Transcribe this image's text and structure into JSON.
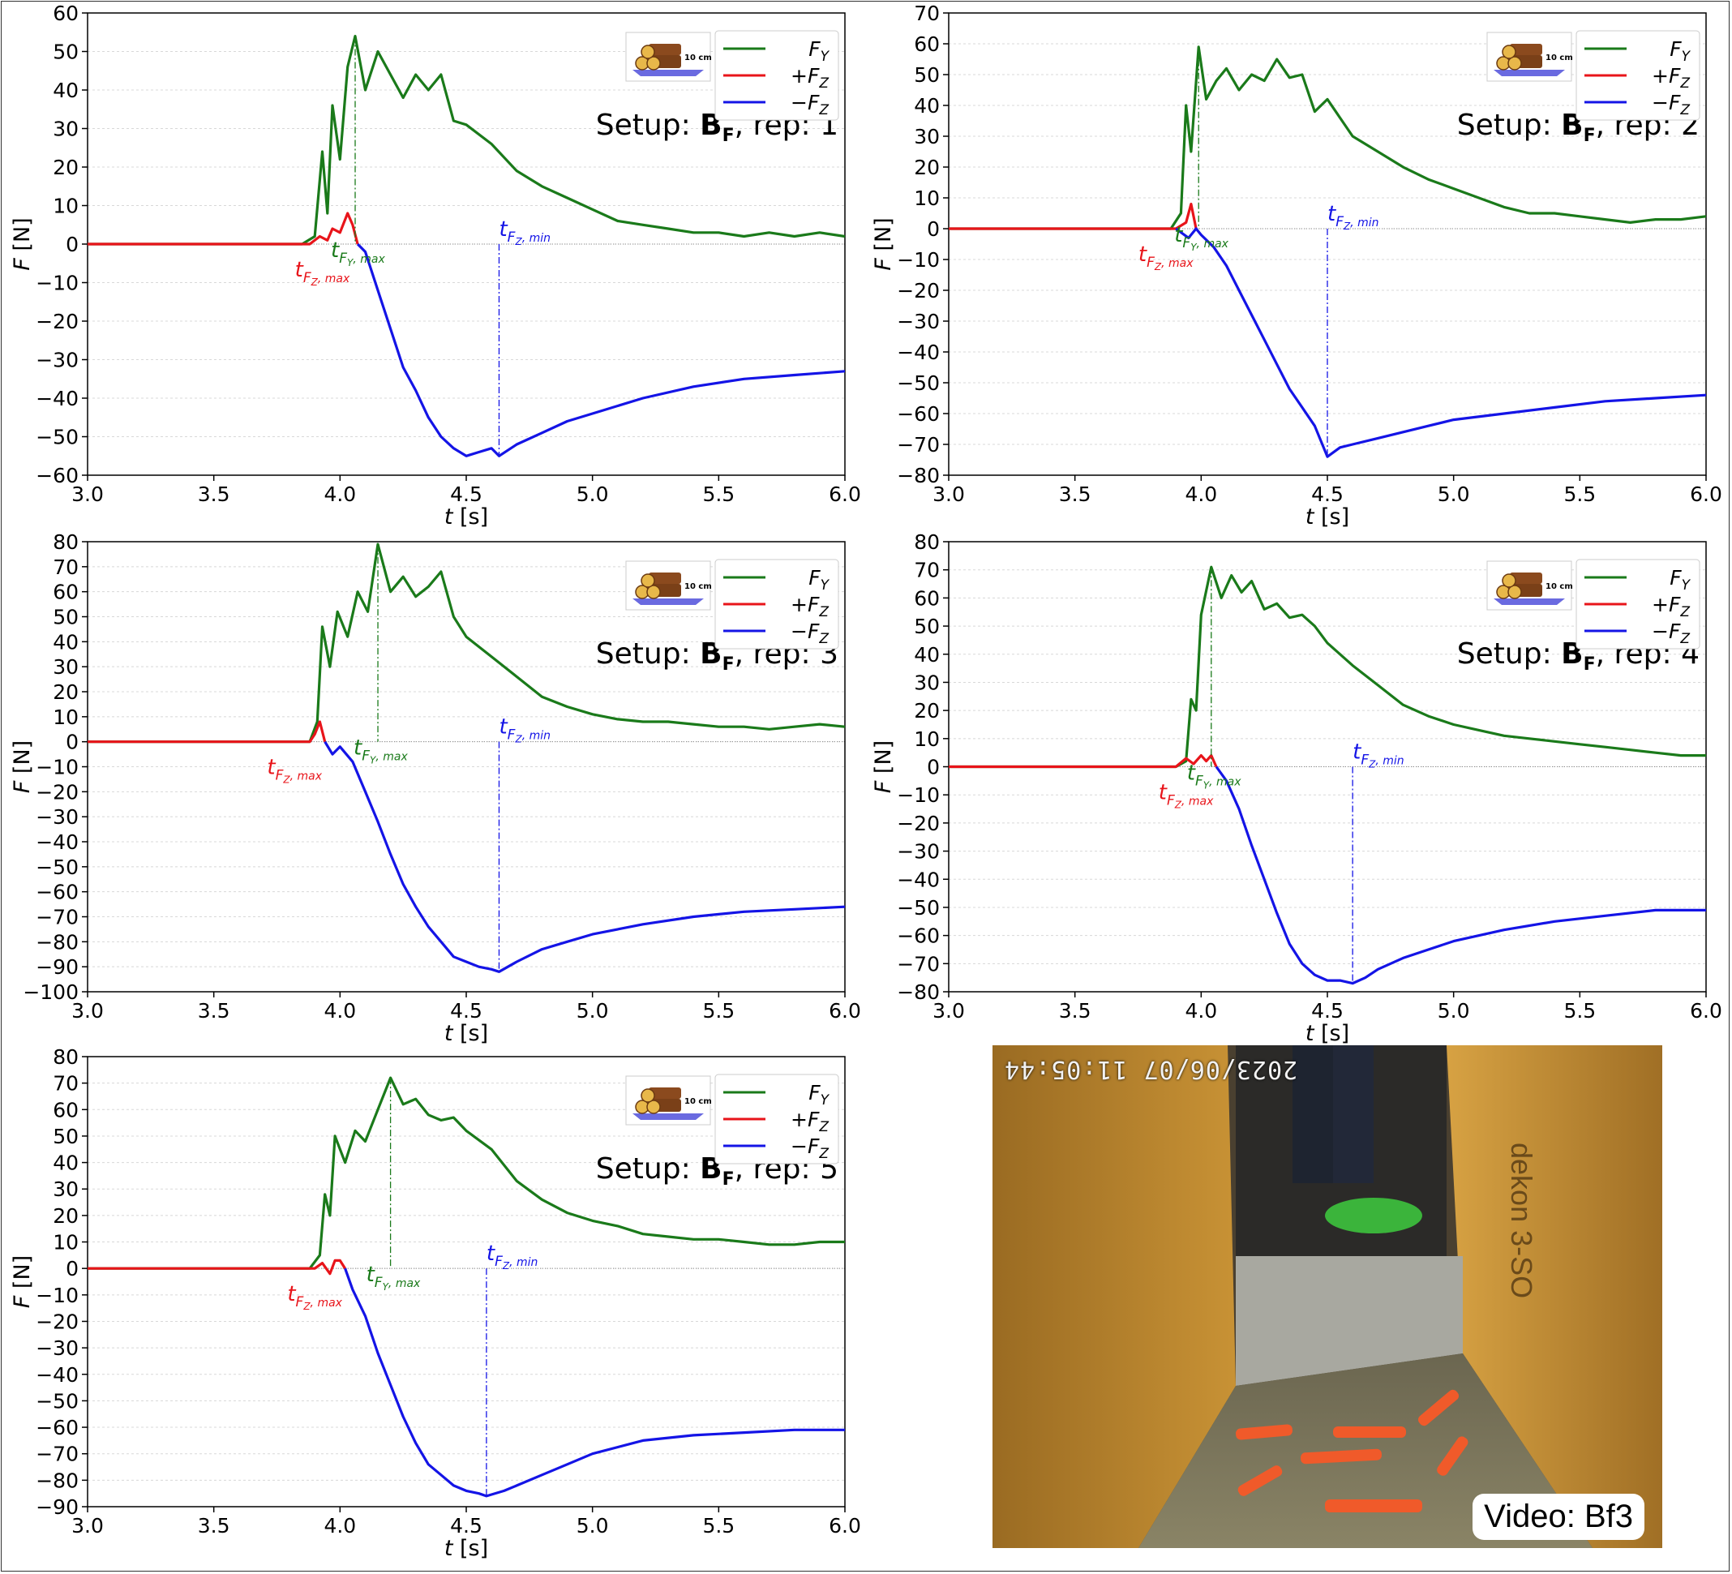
{
  "figure": {
    "video_label": "Video: Bf3",
    "video_timestamp": "2023/06/07 11:05:44",
    "legend_badge": "10 cm"
  },
  "chart_data": [
    {
      "type": "line",
      "setup": "B",
      "setup_sub": "F",
      "rep": "1",
      "title_prefix": "Setup: ",
      "title_suffix": ", rep: 1",
      "xlabel": "t [s]",
      "ylabel": "F [N]",
      "xlim": [
        3.0,
        6.0
      ],
      "ylim": [
        -60,
        60
      ],
      "xticks": [
        3.0,
        3.5,
        4.0,
        4.5,
        5.0,
        5.5,
        6.0
      ],
      "yticks": [
        -60,
        -50,
        -40,
        -30,
        -20,
        -10,
        0,
        10,
        20,
        30,
        40,
        50,
        60
      ],
      "legend": [
        "F_Y",
        "+F_Z",
        "−F_Z"
      ],
      "annotations": {
        "t_FY_max": 4.06,
        "FY_max": 54,
        "t_FZ_max": 4.03,
        "FZ_max": 8,
        "t_FZ_min": 4.63,
        "FZ_min": -55
      },
      "series": [
        {
          "name": "F_Y",
          "color": "#1a7a1a",
          "x": [
            3.0,
            3.85,
            3.9,
            3.93,
            3.95,
            3.97,
            4.0,
            4.03,
            4.06,
            4.1,
            4.15,
            4.2,
            4.25,
            4.3,
            4.35,
            4.4,
            4.45,
            4.5,
            4.6,
            4.7,
            4.8,
            4.9,
            5.0,
            5.1,
            5.2,
            5.3,
            5.4,
            5.5,
            5.6,
            5.7,
            5.8,
            5.9,
            6.0
          ],
          "values": [
            0,
            0,
            2,
            24,
            8,
            36,
            22,
            46,
            54,
            40,
            50,
            44,
            38,
            44,
            40,
            44,
            32,
            31,
            26,
            19,
            15,
            12,
            9,
            6,
            5,
            4,
            3,
            3,
            2,
            3,
            2,
            3,
            2
          ]
        },
        {
          "name": "+F_Z",
          "color": "#e8141a",
          "x": [
            3.0,
            3.88,
            3.92,
            3.95,
            3.97,
            4.0,
            4.03,
            4.05,
            4.07
          ],
          "values": [
            0,
            0,
            2,
            1,
            4,
            3,
            8,
            5,
            0
          ]
        },
        {
          "name": "−F_Z",
          "color": "#1414e6",
          "x": [
            4.07,
            4.1,
            4.15,
            4.2,
            4.25,
            4.3,
            4.35,
            4.4,
            4.45,
            4.5,
            4.55,
            4.6,
            4.63,
            4.7,
            4.8,
            4.9,
            5.0,
            5.2,
            5.4,
            5.6,
            5.8,
            6.0
          ],
          "values": [
            0,
            -2,
            -12,
            -22,
            -32,
            -38,
            -45,
            -50,
            -53,
            -55,
            -54,
            -53,
            -55,
            -52,
            -49,
            -46,
            -44,
            -40,
            -37,
            -35,
            -34,
            -33
          ]
        }
      ]
    },
    {
      "type": "line",
      "setup": "B",
      "setup_sub": "F",
      "rep": "2",
      "title_prefix": "Setup: ",
      "title_suffix": ", rep: 2",
      "xlabel": "t [s]",
      "ylabel": "F [N]",
      "xlim": [
        3.0,
        6.0
      ],
      "ylim": [
        -80,
        70
      ],
      "xticks": [
        3.0,
        3.5,
        4.0,
        4.5,
        5.0,
        5.5,
        6.0
      ],
      "yticks": [
        -80,
        -70,
        -60,
        -50,
        -40,
        -30,
        -20,
        -10,
        0,
        10,
        20,
        30,
        40,
        50,
        60,
        70
      ],
      "legend": [
        "F_Y",
        "+F_Z",
        "−F_Z"
      ],
      "annotations": {
        "t_FY_max": 3.99,
        "FY_max": 59,
        "t_FZ_max": 3.96,
        "FZ_max": 8,
        "t_FZ_min": 4.5,
        "FZ_min": -74
      },
      "series": [
        {
          "name": "F_Y",
          "color": "#1a7a1a",
          "x": [
            3.0,
            3.88,
            3.92,
            3.94,
            3.96,
            3.99,
            4.02,
            4.06,
            4.1,
            4.15,
            4.2,
            4.25,
            4.3,
            4.35,
            4.4,
            4.45,
            4.5,
            4.6,
            4.7,
            4.8,
            4.9,
            5.0,
            5.1,
            5.2,
            5.3,
            5.4,
            5.5,
            5.6,
            5.7,
            5.8,
            5.9,
            6.0
          ],
          "values": [
            0,
            0,
            5,
            40,
            25,
            59,
            42,
            48,
            52,
            45,
            50,
            48,
            55,
            49,
            50,
            38,
            42,
            30,
            25,
            20,
            16,
            13,
            10,
            7,
            5,
            5,
            4,
            3,
            2,
            3,
            3,
            4
          ]
        },
        {
          "name": "+F_Z",
          "color": "#e8141a",
          "x": [
            3.0,
            3.9,
            3.94,
            3.96,
            3.98
          ],
          "values": [
            0,
            0,
            2,
            8,
            0
          ]
        },
        {
          "name": "−F_Z",
          "color": "#1414e6",
          "x": [
            3.9,
            3.95,
            3.98,
            4.0,
            4.05,
            4.1,
            4.15,
            4.2,
            4.25,
            4.3,
            4.35,
            4.4,
            4.45,
            4.5,
            4.55,
            4.6,
            4.7,
            4.8,
            4.9,
            5.0,
            5.2,
            5.4,
            5.6,
            5.8,
            6.0
          ],
          "values": [
            0,
            -3,
            0,
            -2,
            -6,
            -12,
            -20,
            -28,
            -36,
            -44,
            -52,
            -58,
            -64,
            -74,
            -71,
            -70,
            -68,
            -66,
            -64,
            -62,
            -60,
            -58,
            -56,
            -55,
            -54
          ]
        }
      ]
    },
    {
      "type": "line",
      "setup": "B",
      "setup_sub": "F",
      "rep": "3",
      "title_prefix": "Setup: ",
      "title_suffix": ", rep: 3",
      "xlabel": "t [s]",
      "ylabel": "F [N]",
      "xlim": [
        3.0,
        6.0
      ],
      "ylim": [
        -100,
        80
      ],
      "xticks": [
        3.0,
        3.5,
        4.0,
        4.5,
        5.0,
        5.5,
        6.0
      ],
      "yticks": [
        -100,
        -90,
        -80,
        -70,
        -60,
        -50,
        -40,
        -30,
        -20,
        -10,
        0,
        10,
        20,
        30,
        40,
        50,
        60,
        70,
        80
      ],
      "legend": [
        "F_Y",
        "+F_Z",
        "−F_Z"
      ],
      "annotations": {
        "t_FY_max": 4.15,
        "FY_max": 79,
        "t_FZ_max": 3.92,
        "FZ_max": 8,
        "t_FZ_min": 4.63,
        "FZ_min": -92
      },
      "series": [
        {
          "name": "F_Y",
          "color": "#1a7a1a",
          "x": [
            3.0,
            3.88,
            3.91,
            3.93,
            3.96,
            3.99,
            4.03,
            4.07,
            4.11,
            4.15,
            4.2,
            4.25,
            4.3,
            4.35,
            4.4,
            4.45,
            4.5,
            4.6,
            4.7,
            4.8,
            4.9,
            5.0,
            5.1,
            5.2,
            5.3,
            5.4,
            5.5,
            5.6,
            5.7,
            5.8,
            5.9,
            6.0
          ],
          "values": [
            0,
            0,
            8,
            46,
            30,
            52,
            42,
            60,
            52,
            79,
            60,
            66,
            58,
            62,
            68,
            50,
            42,
            34,
            26,
            18,
            14,
            11,
            9,
            8,
            8,
            7,
            6,
            6,
            5,
            6,
            7,
            6
          ]
        },
        {
          "name": "+F_Z",
          "color": "#e8141a",
          "x": [
            3.0,
            3.88,
            3.9,
            3.92,
            3.94
          ],
          "values": [
            0,
            0,
            3,
            8,
            0
          ]
        },
        {
          "name": "−F_Z",
          "color": "#1414e6",
          "x": [
            3.94,
            3.97,
            4.0,
            4.05,
            4.1,
            4.15,
            4.2,
            4.25,
            4.3,
            4.35,
            4.4,
            4.45,
            4.5,
            4.55,
            4.6,
            4.63,
            4.7,
            4.8,
            4.9,
            5.0,
            5.2,
            5.4,
            5.6,
            5.8,
            6.0
          ],
          "values": [
            0,
            -5,
            -2,
            -8,
            -20,
            -32,
            -45,
            -57,
            -66,
            -74,
            -80,
            -86,
            -88,
            -90,
            -91,
            -92,
            -88,
            -83,
            -80,
            -77,
            -73,
            -70,
            -68,
            -67,
            -66
          ]
        }
      ]
    },
    {
      "type": "line",
      "setup": "B",
      "setup_sub": "F",
      "rep": "4",
      "title_prefix": "Setup: ",
      "title_suffix": ", rep: 4",
      "xlabel": "t [s]",
      "ylabel": "F [N]",
      "xlim": [
        3.0,
        6.0
      ],
      "ylim": [
        -80,
        80
      ],
      "xticks": [
        3.0,
        3.5,
        4.0,
        4.5,
        5.0,
        5.5,
        6.0
      ],
      "yticks": [
        -80,
        -70,
        -60,
        -50,
        -40,
        -30,
        -20,
        -10,
        0,
        10,
        20,
        30,
        40,
        50,
        60,
        70,
        80
      ],
      "legend": [
        "F_Y",
        "+F_Z",
        "−F_Z"
      ],
      "annotations": {
        "t_FY_max": 4.04,
        "FY_max": 71,
        "t_FZ_max": 4.04,
        "FZ_max": 4,
        "t_FZ_min": 4.6,
        "FZ_min": -77
      },
      "series": [
        {
          "name": "F_Y",
          "color": "#1a7a1a",
          "x": [
            3.0,
            3.9,
            3.94,
            3.96,
            3.98,
            4.0,
            4.04,
            4.08,
            4.12,
            4.16,
            4.2,
            4.25,
            4.3,
            4.35,
            4.4,
            4.45,
            4.5,
            4.6,
            4.7,
            4.8,
            4.9,
            5.0,
            5.1,
            5.2,
            5.3,
            5.4,
            5.5,
            5.6,
            5.7,
            5.8,
            5.9,
            6.0
          ],
          "values": [
            0,
            0,
            2,
            24,
            20,
            54,
            71,
            60,
            68,
            62,
            66,
            56,
            58,
            53,
            54,
            50,
            44,
            36,
            29,
            22,
            18,
            15,
            13,
            11,
            10,
            9,
            8,
            7,
            6,
            5,
            4,
            4
          ]
        },
        {
          "name": "+F_Z",
          "color": "#e8141a",
          "x": [
            3.0,
            3.9,
            3.94,
            3.97,
            4.0,
            4.02,
            4.04,
            4.06
          ],
          "values": [
            0,
            0,
            3,
            1,
            4,
            2,
            4,
            0
          ]
        },
        {
          "name": "−F_Z",
          "color": "#1414e6",
          "x": [
            4.06,
            4.1,
            4.15,
            4.2,
            4.25,
            4.3,
            4.35,
            4.4,
            4.45,
            4.5,
            4.55,
            4.6,
            4.65,
            4.7,
            4.8,
            4.9,
            5.0,
            5.2,
            5.4,
            5.6,
            5.8,
            6.0
          ],
          "values": [
            0,
            -5,
            -15,
            -28,
            -40,
            -52,
            -63,
            -70,
            -74,
            -76,
            -76,
            -77,
            -75,
            -72,
            -68,
            -65,
            -62,
            -58,
            -55,
            -53,
            -51,
            -51
          ]
        }
      ]
    },
    {
      "type": "line",
      "setup": "B",
      "setup_sub": "F",
      "rep": "5",
      "title_prefix": "Setup: ",
      "title_suffix": ", rep: 5",
      "xlabel": "t [s]",
      "ylabel": "F [N]",
      "xlim": [
        3.0,
        6.0
      ],
      "ylim": [
        -90,
        80
      ],
      "xticks": [
        3.0,
        3.5,
        4.0,
        4.5,
        5.0,
        5.5,
        6.0
      ],
      "yticks": [
        -90,
        -80,
        -70,
        -60,
        -50,
        -40,
        -30,
        -20,
        -10,
        0,
        10,
        20,
        30,
        40,
        50,
        60,
        70,
        80
      ],
      "legend": [
        "F_Y",
        "+F_Z",
        "−F_Z"
      ],
      "annotations": {
        "t_FY_max": 4.2,
        "FY_max": 72,
        "t_FZ_max": 4.0,
        "FZ_max": 3,
        "t_FZ_min": 4.58,
        "FZ_min": -86
      },
      "series": [
        {
          "name": "F_Y",
          "color": "#1a7a1a",
          "x": [
            3.0,
            3.88,
            3.92,
            3.94,
            3.96,
            3.98,
            4.02,
            4.06,
            4.1,
            4.15,
            4.2,
            4.25,
            4.3,
            4.35,
            4.4,
            4.45,
            4.5,
            4.6,
            4.7,
            4.8,
            4.9,
            5.0,
            5.1,
            5.2,
            5.3,
            5.4,
            5.5,
            5.6,
            5.7,
            5.8,
            5.9,
            6.0
          ],
          "values": [
            0,
            0,
            5,
            28,
            20,
            50,
            40,
            52,
            48,
            60,
            72,
            62,
            64,
            58,
            56,
            57,
            52,
            45,
            33,
            26,
            21,
            18,
            16,
            13,
            12,
            11,
            11,
            10,
            9,
            9,
            10,
            10
          ]
        },
        {
          "name": "+F_Z",
          "color": "#e8141a",
          "x": [
            3.0,
            3.9,
            3.93,
            3.96,
            3.98,
            4.0,
            4.02
          ],
          "values": [
            0,
            0,
            2,
            -2,
            3,
            3,
            0
          ]
        },
        {
          "name": "−F_Z",
          "color": "#1414e6",
          "x": [
            4.02,
            4.05,
            4.1,
            4.15,
            4.2,
            4.25,
            4.3,
            4.35,
            4.4,
            4.45,
            4.5,
            4.55,
            4.58,
            4.65,
            4.7,
            4.8,
            4.9,
            5.0,
            5.2,
            5.4,
            5.6,
            5.8,
            6.0
          ],
          "values": [
            0,
            -8,
            -18,
            -32,
            -44,
            -56,
            -66,
            -74,
            -78,
            -82,
            -84,
            -85,
            -86,
            -84,
            -82,
            -78,
            -74,
            -70,
            -65,
            -63,
            -62,
            -61,
            -61
          ]
        }
      ]
    }
  ]
}
